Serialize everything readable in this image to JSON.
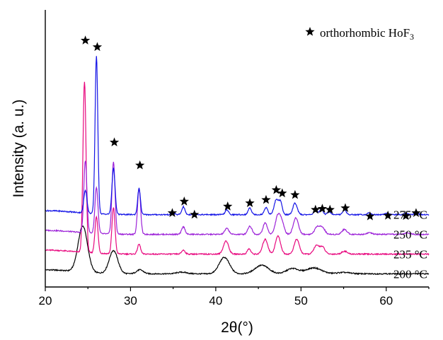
{
  "chart_data": {
    "type": "line",
    "xlabel": "2θ(°)",
    "ylabel": "Intensity (a. u.)",
    "xlim": [
      20,
      65
    ],
    "x_ticks": [
      20,
      30,
      40,
      50,
      60
    ],
    "y_ticks": false,
    "legend": {
      "marker": "star",
      "text_main": "orthorhombic HoF",
      "text_sub": "3",
      "placement": "top-right"
    },
    "series": [
      {
        "name": "200 °C",
        "color": "#000000",
        "offset": 0,
        "baseline": 1.0,
        "peaks": [
          {
            "x": 24.4,
            "h": 14,
            "w": 0.55
          },
          {
            "x": 28.0,
            "h": 7,
            "w": 0.5
          },
          {
            "x": 31.1,
            "h": 1.2,
            "w": 0.4
          },
          {
            "x": 36.0,
            "h": 0.5,
            "w": 0.6
          },
          {
            "x": 41.0,
            "h": 5,
            "w": 0.6
          },
          {
            "x": 45.4,
            "h": 2.6,
            "w": 0.8
          },
          {
            "x": 49.0,
            "h": 1.6,
            "w": 0.7
          },
          {
            "x": 51.5,
            "h": 1.8,
            "w": 0.9
          },
          {
            "x": 55.0,
            "h": 0.4,
            "w": 0.8
          }
        ]
      },
      {
        "name": "235 °C",
        "color": "#e8087e",
        "offset": 6,
        "baseline": 1.0,
        "peaks": [
          {
            "x": 24.6,
            "h": 52,
            "w": 0.18
          },
          {
            "x": 26.0,
            "h": 11,
            "w": 0.18
          },
          {
            "x": 28.0,
            "h": 14,
            "w": 0.18
          },
          {
            "x": 31.0,
            "h": 3,
            "w": 0.18
          },
          {
            "x": 36.2,
            "h": 1.2,
            "w": 0.2
          },
          {
            "x": 41.2,
            "h": 4,
            "w": 0.3
          },
          {
            "x": 43.9,
            "h": 1.6,
            "w": 0.2
          },
          {
            "x": 45.8,
            "h": 4.5,
            "w": 0.3
          },
          {
            "x": 47.3,
            "h": 5.5,
            "w": 0.3
          },
          {
            "x": 49.5,
            "h": 4.5,
            "w": 0.3
          },
          {
            "x": 51.8,
            "h": 2.5,
            "w": 0.3
          },
          {
            "x": 52.5,
            "h": 2.2,
            "w": 0.3
          },
          {
            "x": 55.1,
            "h": 0.9,
            "w": 0.3
          }
        ]
      },
      {
        "name": "250 °C",
        "color": "#9c22d8",
        "offset": 12,
        "baseline": 1.0,
        "peaks": [
          {
            "x": 24.7,
            "h": 22,
            "w": 0.18
          },
          {
            "x": 26.0,
            "h": 14,
            "w": 0.18
          },
          {
            "x": 28.0,
            "h": 22,
            "w": 0.18
          },
          {
            "x": 31.0,
            "h": 14,
            "w": 0.18
          },
          {
            "x": 36.2,
            "h": 2.3,
            "w": 0.2
          },
          {
            "x": 41.3,
            "h": 1.8,
            "w": 0.25
          },
          {
            "x": 44.0,
            "h": 2.5,
            "w": 0.25
          },
          {
            "x": 45.8,
            "h": 3.5,
            "w": 0.25
          },
          {
            "x": 47.3,
            "h": 5.8,
            "w": 0.3
          },
          {
            "x": 47.8,
            "h": 3.0,
            "w": 0.25
          },
          {
            "x": 49.4,
            "h": 5,
            "w": 0.3
          },
          {
            "x": 51.9,
            "h": 2.2,
            "w": 0.3
          },
          {
            "x": 52.5,
            "h": 2.0,
            "w": 0.3
          },
          {
            "x": 55.1,
            "h": 1.5,
            "w": 0.3
          },
          {
            "x": 58.0,
            "h": 0.5,
            "w": 0.3
          },
          {
            "x": 62.5,
            "h": 0.5,
            "w": 0.3
          }
        ]
      },
      {
        "name": "275 °C",
        "color": "#1414e6",
        "offset": 18,
        "baseline": 1.0,
        "peaks": [
          {
            "x": 24.7,
            "h": 7,
            "w": 0.18
          },
          {
            "x": 26.0,
            "h": 48,
            "w": 0.16
          },
          {
            "x": 28.0,
            "h": 14,
            "w": 0.18
          },
          {
            "x": 31.0,
            "h": 8,
            "w": 0.16
          },
          {
            "x": 35.0,
            "h": 0.5,
            "w": 0.2
          },
          {
            "x": 36.2,
            "h": 2.4,
            "w": 0.18
          },
          {
            "x": 37.5,
            "h": 0.5,
            "w": 0.2
          },
          {
            "x": 41.3,
            "h": 1.4,
            "w": 0.2
          },
          {
            "x": 44.0,
            "h": 2.0,
            "w": 0.2
          },
          {
            "x": 45.9,
            "h": 2.2,
            "w": 0.2
          },
          {
            "x": 47.1,
            "h": 4.5,
            "w": 0.25
          },
          {
            "x": 47.6,
            "h": 3.6,
            "w": 0.2
          },
          {
            "x": 49.3,
            "h": 3.5,
            "w": 0.25
          },
          {
            "x": 51.7,
            "h": 1.6,
            "w": 0.2
          },
          {
            "x": 52.4,
            "h": 1.6,
            "w": 0.2
          },
          {
            "x": 53.3,
            "h": 0.9,
            "w": 0.2
          },
          {
            "x": 55.1,
            "h": 1.5,
            "w": 0.2
          },
          {
            "x": 58.0,
            "h": 0.5,
            "w": 0.2
          },
          {
            "x": 60.0,
            "h": 0.4,
            "w": 0.2
          },
          {
            "x": 62.3,
            "h": 0.5,
            "w": 0.2
          },
          {
            "x": 63.5,
            "h": 0.8,
            "w": 0.2
          }
        ]
      }
    ],
    "star_markers": [
      {
        "x": 24.7,
        "y": 72
      },
      {
        "x": 26.1,
        "y": 70
      },
      {
        "x": 28.1,
        "y": 41
      },
      {
        "x": 31.1,
        "y": 34
      },
      {
        "x": 34.9,
        "y": 19.5
      },
      {
        "x": 36.3,
        "y": 23
      },
      {
        "x": 37.5,
        "y": 19
      },
      {
        "x": 41.4,
        "y": 21.5
      },
      {
        "x": 44.0,
        "y": 22.5
      },
      {
        "x": 45.9,
        "y": 23.5
      },
      {
        "x": 47.1,
        "y": 26.5
      },
      {
        "x": 47.8,
        "y": 25.5
      },
      {
        "x": 49.3,
        "y": 25
      },
      {
        "x": 51.7,
        "y": 20.5
      },
      {
        "x": 52.5,
        "y": 20.8
      },
      {
        "x": 53.4,
        "y": 20.5
      },
      {
        "x": 55.2,
        "y": 21
      },
      {
        "x": 58.1,
        "y": 18.5
      },
      {
        "x": 60.2,
        "y": 18.7
      },
      {
        "x": 62.3,
        "y": 18.6
      },
      {
        "x": 63.5,
        "y": 19.5
      }
    ],
    "ylim": [
      0,
      78
    ]
  }
}
